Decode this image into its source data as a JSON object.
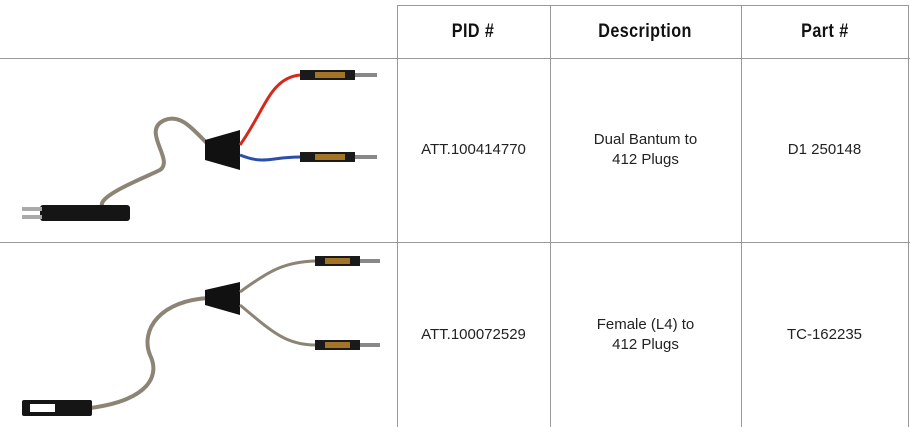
{
  "table": {
    "header": [
      "PID #",
      "Description",
      "Part #"
    ],
    "rows": [
      {
        "pid": "ATT.100414770",
        "description": [
          "Dual Bantum to",
          "412 Plugs"
        ],
        "part": "D1 250148"
      },
      {
        "pid": "ATT.100072529",
        "description": [
          "Female (L4) to",
          "412 Plugs"
        ],
        "part": "TC-162235"
      }
    ]
  }
}
